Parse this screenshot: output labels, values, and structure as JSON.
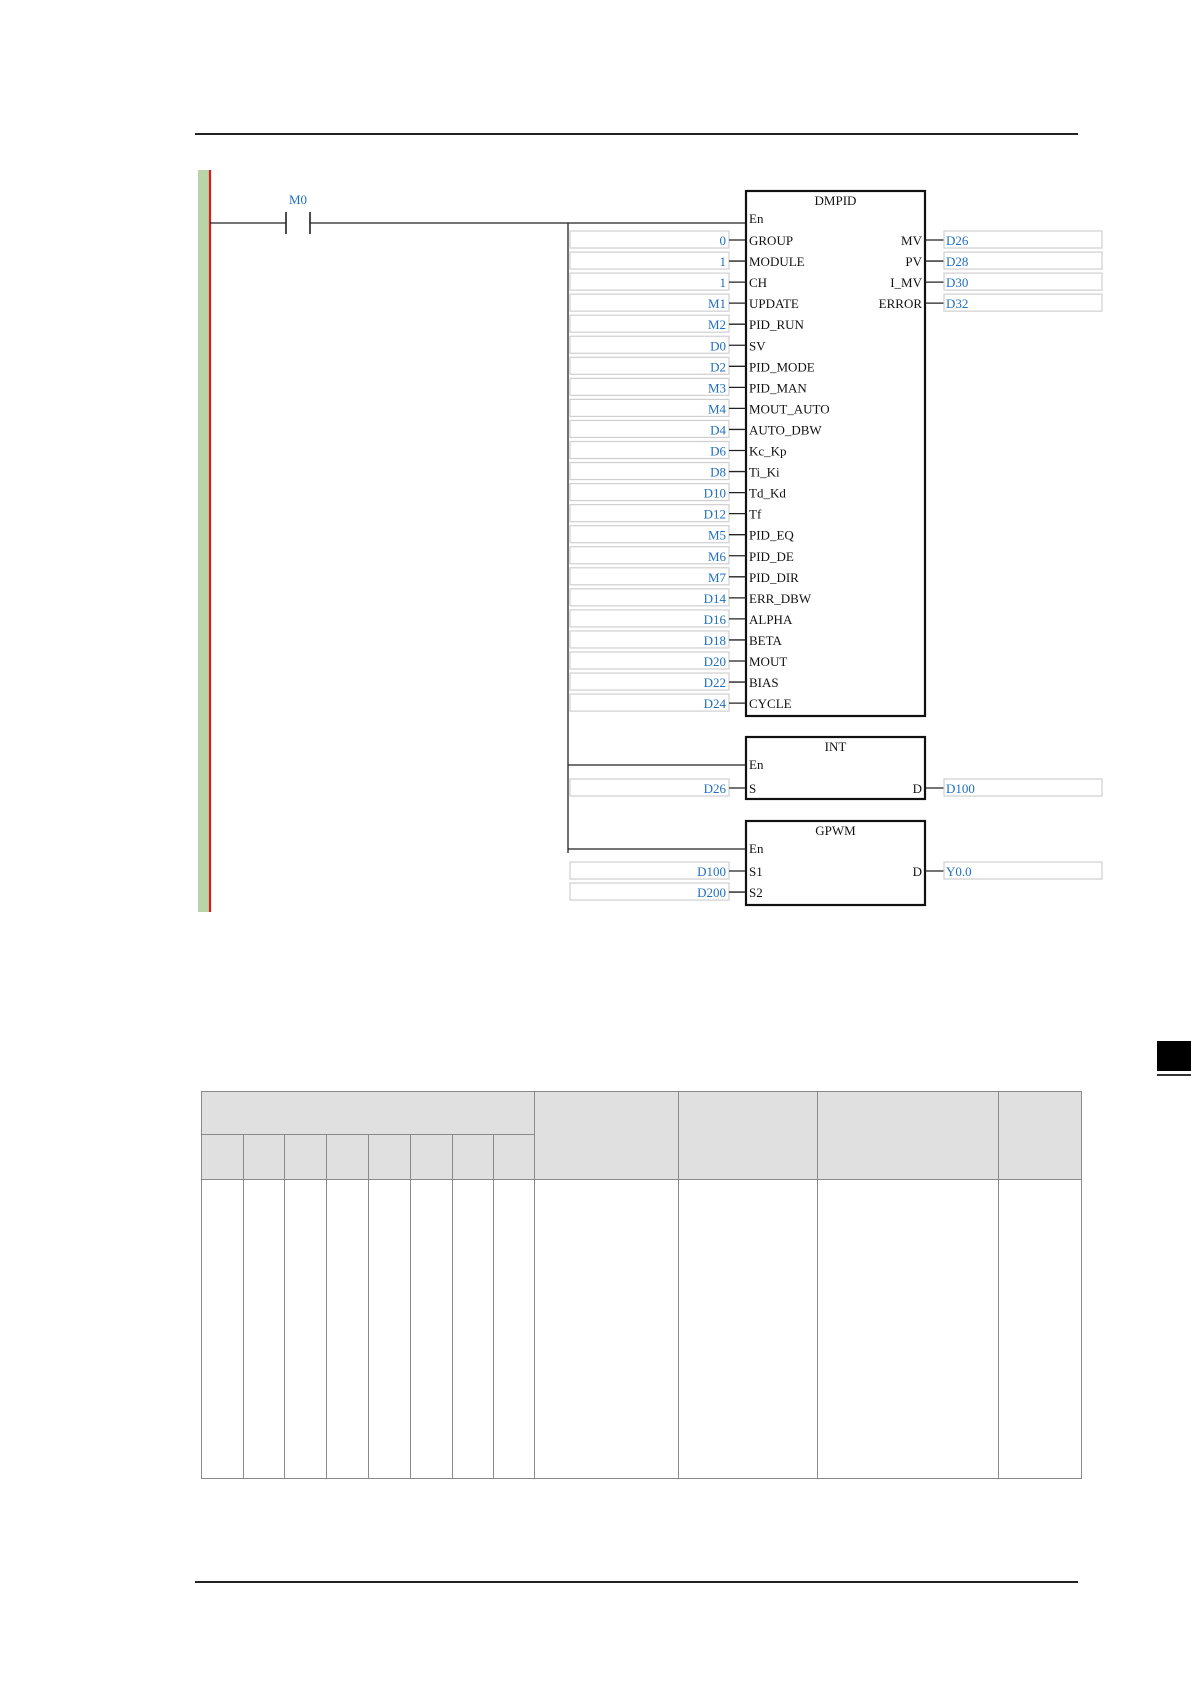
{
  "colors": {
    "operand": "#1f6fbf",
    "power_rail": "#b9d4a8",
    "rail_line": "#d62020",
    "header_fill": "#e0e0e0"
  },
  "ladder": {
    "contact": {
      "label": "M0"
    },
    "blocks": [
      {
        "name": "DMPID",
        "inputs": [
          {
            "pin": "GROUP",
            "operand": "0"
          },
          {
            "pin": "MODULE",
            "operand": "1"
          },
          {
            "pin": "CH",
            "operand": "1"
          },
          {
            "pin": "UPDATE",
            "operand": "M1"
          },
          {
            "pin": "PID_RUN",
            "operand": "M2"
          },
          {
            "pin": "SV",
            "operand": "D0"
          },
          {
            "pin": "PID_MODE",
            "operand": "D2"
          },
          {
            "pin": "PID_MAN",
            "operand": "M3"
          },
          {
            "pin": "MOUT_AUTO",
            "operand": "M4"
          },
          {
            "pin": "AUTO_DBW",
            "operand": "D4"
          },
          {
            "pin": "Kc_Kp",
            "operand": "D6"
          },
          {
            "pin": "Ti_Ki",
            "operand": "D8"
          },
          {
            "pin": "Td_Kd",
            "operand": "D10"
          },
          {
            "pin": "Tf",
            "operand": "D12"
          },
          {
            "pin": "PID_EQ",
            "operand": "M5"
          },
          {
            "pin": "PID_DE",
            "operand": "M6"
          },
          {
            "pin": "PID_DIR",
            "operand": "M7"
          },
          {
            "pin": "ERR_DBW",
            "operand": "D14"
          },
          {
            "pin": "ALPHA",
            "operand": "D16"
          },
          {
            "pin": "BETA",
            "operand": "D18"
          },
          {
            "pin": "MOUT",
            "operand": "D20"
          },
          {
            "pin": "BIAS",
            "operand": "D22"
          },
          {
            "pin": "CYCLE",
            "operand": "D24"
          }
        ],
        "outputs": [
          {
            "pin": "MV",
            "operand": "D26"
          },
          {
            "pin": "PV",
            "operand": "D28"
          },
          {
            "pin": "I_MV",
            "operand": "D30"
          },
          {
            "pin": "ERROR",
            "operand": "D32"
          }
        ]
      },
      {
        "name": "INT",
        "inputs": [
          {
            "pin": "S",
            "operand": "D26"
          }
        ],
        "outputs": [
          {
            "pin": "D",
            "operand": "D100"
          }
        ]
      },
      {
        "name": "GPWM",
        "inputs": [
          {
            "pin": "S1",
            "operand": "D100"
          },
          {
            "pin": "S2",
            "operand": "D200"
          }
        ],
        "outputs": [
          {
            "pin": "D",
            "operand": "Y0.0"
          }
        ]
      }
    ],
    "enable_label": "En"
  }
}
